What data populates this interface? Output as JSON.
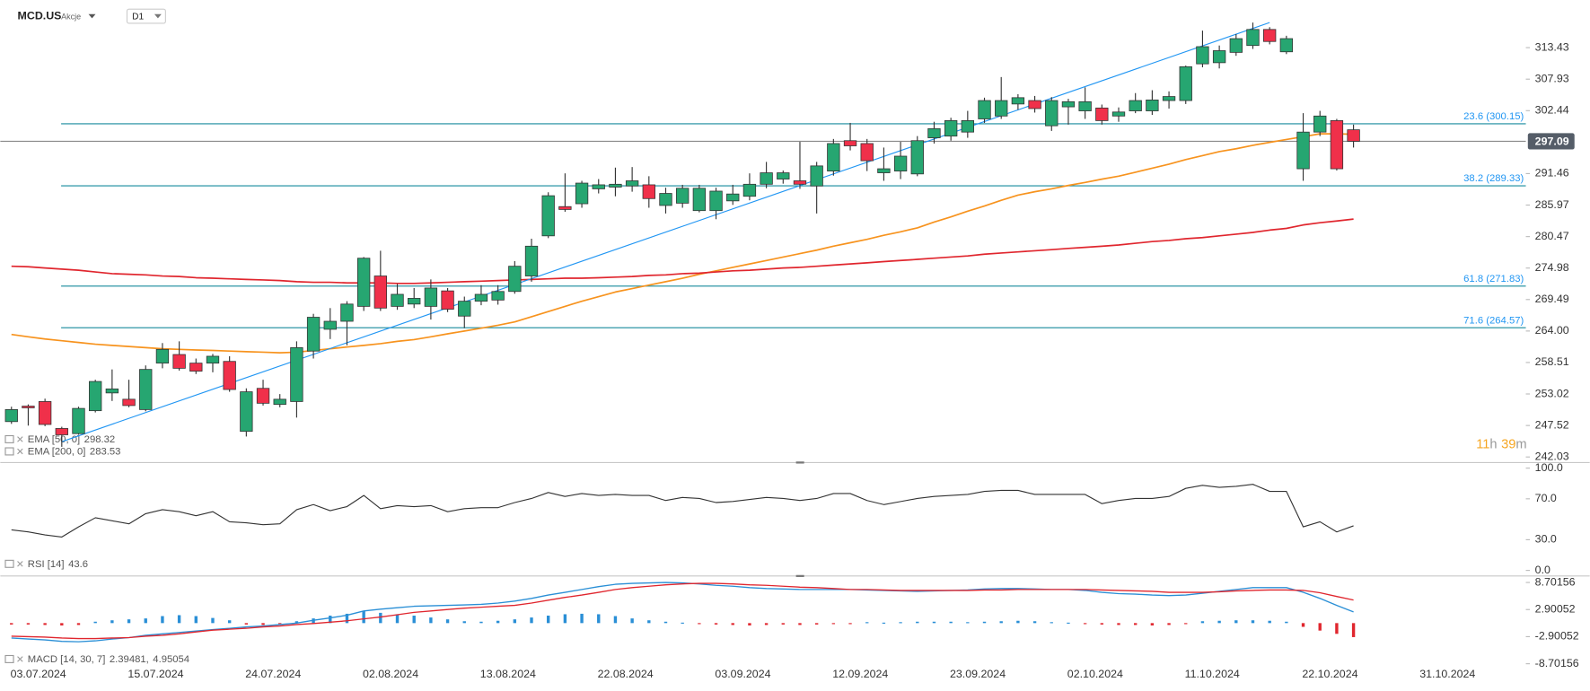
{
  "header": {
    "symbol": "MCD.US",
    "kind": "Akcje",
    "interval": "D1"
  },
  "chart_data": [
    {
      "type": "candlestick",
      "categories": [
        "03.07.2024",
        null,
        null,
        null,
        null,
        null,
        null,
        "15.07.2024",
        null,
        null,
        null,
        null,
        null,
        null,
        "24.07.2024",
        null,
        null,
        null,
        null,
        null,
        null,
        "02.08.2024",
        null,
        null,
        null,
        null,
        null,
        null,
        "13.08.2024",
        null,
        null,
        null,
        null,
        null,
        null,
        "22.08.2024",
        null,
        null,
        null,
        null,
        null,
        null,
        "03.09.2024",
        null,
        null,
        null,
        null,
        null,
        null,
        "12.09.2024",
        null,
        null,
        null,
        null,
        null,
        null,
        "23.09.2024",
        null,
        null,
        null,
        null,
        null,
        null,
        "02.10.2024",
        null,
        null,
        null,
        null,
        null,
        null,
        "11.10.2024",
        null,
        null,
        null,
        null,
        null,
        null,
        "22.10.2024",
        null,
        null,
        null,
        null,
        null,
        null,
        "31.10.2024"
      ],
      "open": [
        248.2,
        250.9,
        251.7,
        247.0,
        246.1,
        250.1,
        253.2,
        252.1,
        250.3,
        258.4,
        259.9,
        258.4,
        258.4,
        258.7,
        246.5,
        254.0,
        251.2,
        251.7,
        260.5,
        264.3,
        265.7,
        268.3,
        273.6,
        268.3,
        268.7,
        268.3,
        271.0,
        266.6,
        269.2,
        269.4,
        270.9,
        273.6,
        280.6,
        285.7,
        286.2,
        288.8,
        289.1,
        289.3,
        289.5,
        285.9,
        286.3,
        285.0,
        285.0,
        286.7,
        287.5,
        289.6,
        290.5,
        290.2,
        289.3,
        291.9,
        297.2,
        296.7,
        291.6,
        291.9,
        291.4,
        297.7,
        298.0,
        298.7,
        301.0,
        301.5,
        303.6,
        304.2,
        299.8,
        303.1,
        302.4,
        302.9,
        301.5,
        302.4,
        302.4,
        304.2,
        304.2,
        310.6,
        310.8,
        312.6,
        313.8,
        316.6,
        312.7,
        292.3,
        298.7,
        300.7,
        299.1,
        null,
        null,
        null,
        null
      ],
      "high": [
        250.8,
        251.2,
        252.2,
        247.3,
        250.8,
        255.5,
        257.3,
        255.5,
        258.0,
        261.9,
        262.2,
        259.2,
        260.0,
        259.6,
        254.0,
        255.5,
        253.0,
        262.2,
        267.0,
        268.0,
        269.2,
        276.9,
        278.0,
        272.2,
        271.5,
        273.0,
        271.5,
        270.0,
        272.0,
        272.0,
        276.2,
        280.1,
        288.2,
        291.5,
        290.2,
        290.5,
        292.5,
        292.6,
        291.0,
        289.0,
        289.5,
        289.5,
        289.0,
        289.5,
        291.5,
        293.5,
        292.0,
        297.0,
        293.5,
        297.5,
        300.3,
        297.5,
        296.0,
        297.0,
        298.0,
        300.5,
        301.2,
        302.4,
        304.7,
        308.3,
        305.3,
        305.0,
        304.8,
        304.5,
        306.5,
        303.5,
        303.0,
        305.5,
        306.0,
        305.8,
        310.3,
        316.4,
        313.8,
        315.8,
        317.8,
        317.0,
        315.5,
        302.0,
        302.4,
        301.0,
        300.0,
        null,
        null,
        null,
        null
      ],
      "low": [
        247.8,
        247.5,
        247.4,
        243.8,
        245.9,
        249.8,
        251.8,
        250.7,
        250.0,
        257.5,
        257.1,
        256.5,
        256.8,
        253.4,
        245.6,
        251.0,
        250.7,
        248.9,
        259.2,
        262.6,
        261.5,
        267.5,
        267.5,
        267.7,
        268.0,
        266.0,
        267.3,
        264.5,
        268.5,
        268.6,
        270.5,
        272.6,
        280.2,
        284.8,
        285.5,
        288.0,
        287.5,
        288.3,
        285.5,
        284.5,
        285.5,
        284.7,
        283.5,
        286.0,
        286.8,
        288.9,
        289.7,
        288.8,
        284.5,
        291.1,
        295.5,
        291.9,
        290.2,
        290.5,
        291.0,
        296.7,
        297.2,
        297.7,
        300.3,
        301.0,
        302.6,
        302.1,
        298.9,
        300.0,
        301.0,
        300.0,
        300.5,
        302.0,
        301.7,
        302.8,
        303.6,
        310.0,
        309.8,
        312.0,
        313.2,
        314.0,
        312.3,
        290.2,
        298.0,
        292.0,
        296.0,
        null,
        null,
        null,
        null
      ],
      "close": [
        250.3,
        250.6,
        247.7,
        245.9,
        250.5,
        255.2,
        253.9,
        251.0,
        257.3,
        260.8,
        257.5,
        257.0,
        259.6,
        253.8,
        253.4,
        251.4,
        252.1,
        261.1,
        266.4,
        265.7,
        268.7,
        276.7,
        268.0,
        270.4,
        269.7,
        271.5,
        267.8,
        269.2,
        270.4,
        270.9,
        275.3,
        278.8,
        287.6,
        285.2,
        289.8,
        289.5,
        289.6,
        290.2,
        287.1,
        288.0,
        288.9,
        288.9,
        288.4,
        287.9,
        289.6,
        291.6,
        291.6,
        289.6,
        292.8,
        296.7,
        296.3,
        293.7,
        292.3,
        294.5,
        297.2,
        299.3,
        300.7,
        300.7,
        304.2,
        304.2,
        304.7,
        302.8,
        304.2,
        304.0,
        304.0,
        300.7,
        302.2,
        304.2,
        304.3,
        304.9,
        310.1,
        313.6,
        312.9,
        315.0,
        316.6,
        314.5,
        315.0,
        298.7,
        301.5,
        292.3,
        297.09,
        null,
        null,
        null,
        null
      ],
      "up_color": "#26a671",
      "down_color": "#f0304a",
      "series": [
        {
          "name": "EMA [50, 0]",
          "color": "#f7931e",
          "values": [
            263.4,
            263.0,
            262.6,
            262.3,
            262.0,
            261.7,
            261.5,
            261.3,
            261.1,
            260.9,
            260.8,
            260.7,
            260.6,
            260.5,
            260.4,
            260.3,
            260.2,
            260.3,
            260.6,
            260.9,
            261.2,
            261.5,
            261.8,
            262.2,
            262.5,
            263.0,
            263.5,
            264.0,
            264.5,
            265.0,
            265.6,
            266.5,
            267.4,
            268.3,
            269.2,
            270.0,
            270.8,
            271.4,
            272.0,
            272.6,
            273.2,
            273.9,
            274.5,
            275.1,
            275.7,
            276.3,
            276.9,
            277.5,
            278.1,
            278.8,
            279.4,
            280.0,
            280.7,
            281.3,
            282.0,
            283.0,
            283.9,
            284.9,
            285.8,
            286.8,
            287.7,
            288.3,
            288.8,
            289.4,
            289.9,
            290.5,
            291.0,
            291.7,
            292.4,
            293.1,
            293.9,
            294.6,
            295.3,
            295.8,
            296.4,
            296.9,
            297.4,
            297.9,
            298.4,
            298.4,
            298.32,
            null,
            null,
            null,
            null
          ]
        },
        {
          "name": "EMA [200, 0]",
          "color": "#e0262e",
          "values": [
            275.3,
            275.2,
            275.0,
            274.8,
            274.6,
            274.3,
            274.0,
            273.9,
            273.8,
            273.6,
            273.5,
            273.3,
            273.2,
            273.1,
            273.0,
            272.9,
            272.8,
            272.6,
            272.5,
            272.5,
            272.4,
            272.4,
            272.4,
            272.3,
            272.3,
            272.4,
            272.5,
            272.6,
            272.7,
            272.8,
            272.9,
            273.0,
            273.1,
            273.2,
            273.2,
            273.3,
            273.4,
            273.5,
            273.7,
            273.8,
            274.0,
            274.1,
            274.3,
            274.5,
            274.6,
            274.8,
            275.0,
            275.1,
            275.3,
            275.5,
            275.7,
            275.9,
            276.1,
            276.3,
            276.5,
            276.7,
            276.9,
            277.1,
            277.4,
            277.6,
            277.8,
            278.0,
            278.2,
            278.4,
            278.6,
            278.8,
            279.0,
            279.3,
            279.6,
            279.8,
            280.1,
            280.3,
            280.6,
            280.9,
            281.2,
            281.6,
            281.9,
            282.5,
            282.9,
            283.2,
            283.53,
            null,
            null,
            null,
            null
          ]
        }
      ],
      "ylim": [
        241.15,
        319.97
      ],
      "yticks": [
        313.43,
        307.93,
        302.44,
        291.46,
        285.97,
        280.47,
        274.98,
        269.49,
        {
          "value": 264,
          "label": "264.00"
        },
        258.51,
        253.02,
        247.52,
        242.03
      ],
      "last_price": 297.09,
      "levels": [
        {
          "label": "23.6 (300.15)",
          "value": 300.15,
          "color": "#168a9c"
        },
        {
          "label": "38.2 (289.33)",
          "value": 289.33,
          "color": "#168a9c"
        },
        {
          "label": "61.8 (271.83)",
          "value": 271.83,
          "color": "#168a9c"
        },
        {
          "label": "71.6 (264.57)",
          "value": 264.57,
          "color": "#168a9c"
        }
      ],
      "trendline": {
        "x": [
          3,
          75
        ],
        "values": [
          244.7,
          317.8
        ],
        "color": "#2196f3"
      },
      "countdown": [
        "11",
        "h",
        "39",
        "m"
      ]
    },
    {
      "type": "line",
      "series": [
        {
          "name": "RSI [14]",
          "color": "#333333",
          "values": [
            39.6,
            37.6,
            34.7,
            32.7,
            42.6,
            51.5,
            48.5,
            45.5,
            55.4,
            59.4,
            57.4,
            53.5,
            57.4,
            47.5,
            46.5,
            44.6,
            45.5,
            59.4,
            64.4,
            58.4,
            62.4,
            73.3,
            60.4,
            63.4,
            62.4,
            63.4,
            57.4,
            60.4,
            61.4,
            61.4,
            66.3,
            70.3,
            76.2,
            72.3,
            75.2,
            73.3,
            74.3,
            73.3,
            73.3,
            68.3,
            71.3,
            70.3,
            66.3,
            67.3,
            69.3,
            71.3,
            70.3,
            68.3,
            70.3,
            75.2,
            75.2,
            68.3,
            64.4,
            67.3,
            70.3,
            72.3,
            73.3,
            74.3,
            77.2,
            78.2,
            78.2,
            74.3,
            74.3,
            74.3,
            74.3,
            65.3,
            68.3,
            70.3,
            70.3,
            72.3,
            80.2,
            83.2,
            81.2,
            82.2,
            84.2,
            77.2,
            77.2,
            42.6,
            47.5,
            37.6,
            43.6,
            null,
            null,
            null,
            null
          ]
        }
      ],
      "ylim": [
        -5,
        104
      ],
      "yticks": [
        {
          "value": 100,
          "label": "100.0"
        },
        {
          "value": 70,
          "label": "70.0"
        },
        {
          "value": 30,
          "label": "30.0"
        },
        {
          "value": 0,
          "label": "0.0"
        }
      ]
    },
    {
      "type": "combo",
      "name": "MACD [14, 30, 7]",
      "legend_values": [
        "2.39481,",
        "4.95054"
      ],
      "series": [
        {
          "type": "bar",
          "up_color": "#2a8fd6",
          "down_color": "#e0262e",
          "values": [
            -0.3,
            -0.3,
            -0.4,
            -0.5,
            -0.4,
            0.3,
            0.6,
            0.8,
            1.0,
            1.5,
            1.7,
            1.5,
            1.1,
            0.6,
            -0.3,
            -0.4,
            -0.2,
            0.4,
            1.0,
            1.6,
            2.0,
            2.6,
            2.2,
            1.9,
            1.6,
            1.2,
            0.8,
            0.4,
            0.3,
            0.5,
            0.8,
            1.2,
            1.6,
            1.9,
            2.0,
            1.9,
            1.5,
            1.0,
            0.6,
            0.3,
            0.1,
            -0.2,
            -0.3,
            -0.4,
            -0.5,
            -0.4,
            -0.3,
            -0.4,
            -0.3,
            -0.2,
            -0.1,
            0.2,
            0.1,
            0.2,
            0.3,
            0.3,
            0.3,
            0.2,
            0.3,
            0.4,
            0.5,
            0.4,
            0.2,
            0.1,
            -0.2,
            -0.3,
            -0.4,
            -0.4,
            -0.5,
            -0.4,
            -0.2,
            0.4,
            0.5,
            0.6,
            0.6,
            0.5,
            0.3,
            -0.8,
            -1.6,
            -2.3,
            -3.0,
            null,
            null,
            null,
            null
          ]
        },
        {
          "type": "line",
          "color": "#2a8fd6",
          "values": [
            -3.2,
            -3.4,
            -3.6,
            -3.9,
            -4.0,
            -3.8,
            -3.4,
            -3.1,
            -2.6,
            -2.3,
            -2.0,
            -1.7,
            -1.4,
            -1.1,
            -0.8,
            -0.6,
            -0.3,
            0.0,
            0.6,
            1.1,
            1.7,
            2.6,
            3.0,
            3.3,
            3.6,
            3.7,
            3.8,
            3.9,
            4.0,
            4.3,
            4.7,
            5.3,
            6.0,
            6.6,
            7.2,
            7.8,
            8.3,
            8.5,
            8.6,
            8.7,
            8.6,
            8.4,
            8.1,
            7.9,
            7.6,
            7.4,
            7.3,
            7.2,
            7.2,
            7.2,
            7.2,
            7.1,
            7.0,
            6.9,
            6.8,
            6.9,
            7.0,
            7.1,
            7.3,
            7.4,
            7.4,
            7.3,
            7.2,
            7.2,
            7.0,
            6.6,
            6.3,
            6.2,
            6.0,
            5.9,
            6.0,
            6.4,
            6.8,
            7.2,
            7.6,
            7.6,
            7.6,
            6.6,
            5.3,
            3.8,
            2.39481,
            null,
            null,
            null,
            null
          ]
        },
        {
          "type": "line",
          "color": "#e0262e",
          "values": [
            -2.8,
            -2.9,
            -3.0,
            -3.2,
            -3.3,
            -3.3,
            -3.2,
            -3.1,
            -2.8,
            -2.6,
            -2.3,
            -1.9,
            -1.5,
            -1.3,
            -1.1,
            -0.8,
            -0.6,
            -0.3,
            -0.1,
            0.2,
            0.5,
            0.9,
            1.3,
            1.8,
            2.3,
            2.6,
            2.9,
            3.2,
            3.4,
            3.6,
            3.8,
            4.3,
            4.9,
            5.5,
            6.0,
            6.6,
            7.2,
            7.6,
            7.9,
            8.2,
            8.4,
            8.5,
            8.5,
            8.4,
            8.2,
            8.1,
            7.9,
            7.7,
            7.6,
            7.4,
            7.2,
            7.2,
            7.1,
            7.0,
            7.0,
            7.0,
            7.0,
            7.0,
            7.1,
            7.1,
            7.2,
            7.2,
            7.2,
            7.2,
            7.2,
            7.1,
            7.0,
            6.9,
            6.8,
            6.6,
            6.6,
            6.6,
            6.7,
            6.9,
            7.0,
            7.1,
            7.1,
            7.0,
            6.5,
            5.7,
            4.95054,
            null,
            null,
            null,
            null
          ]
        }
      ],
      "ylim": [
        -10.2,
        9.76
      ],
      "yticks": [
        8.70156,
        2.90052,
        -2.90052,
        -8.70156
      ]
    }
  ]
}
